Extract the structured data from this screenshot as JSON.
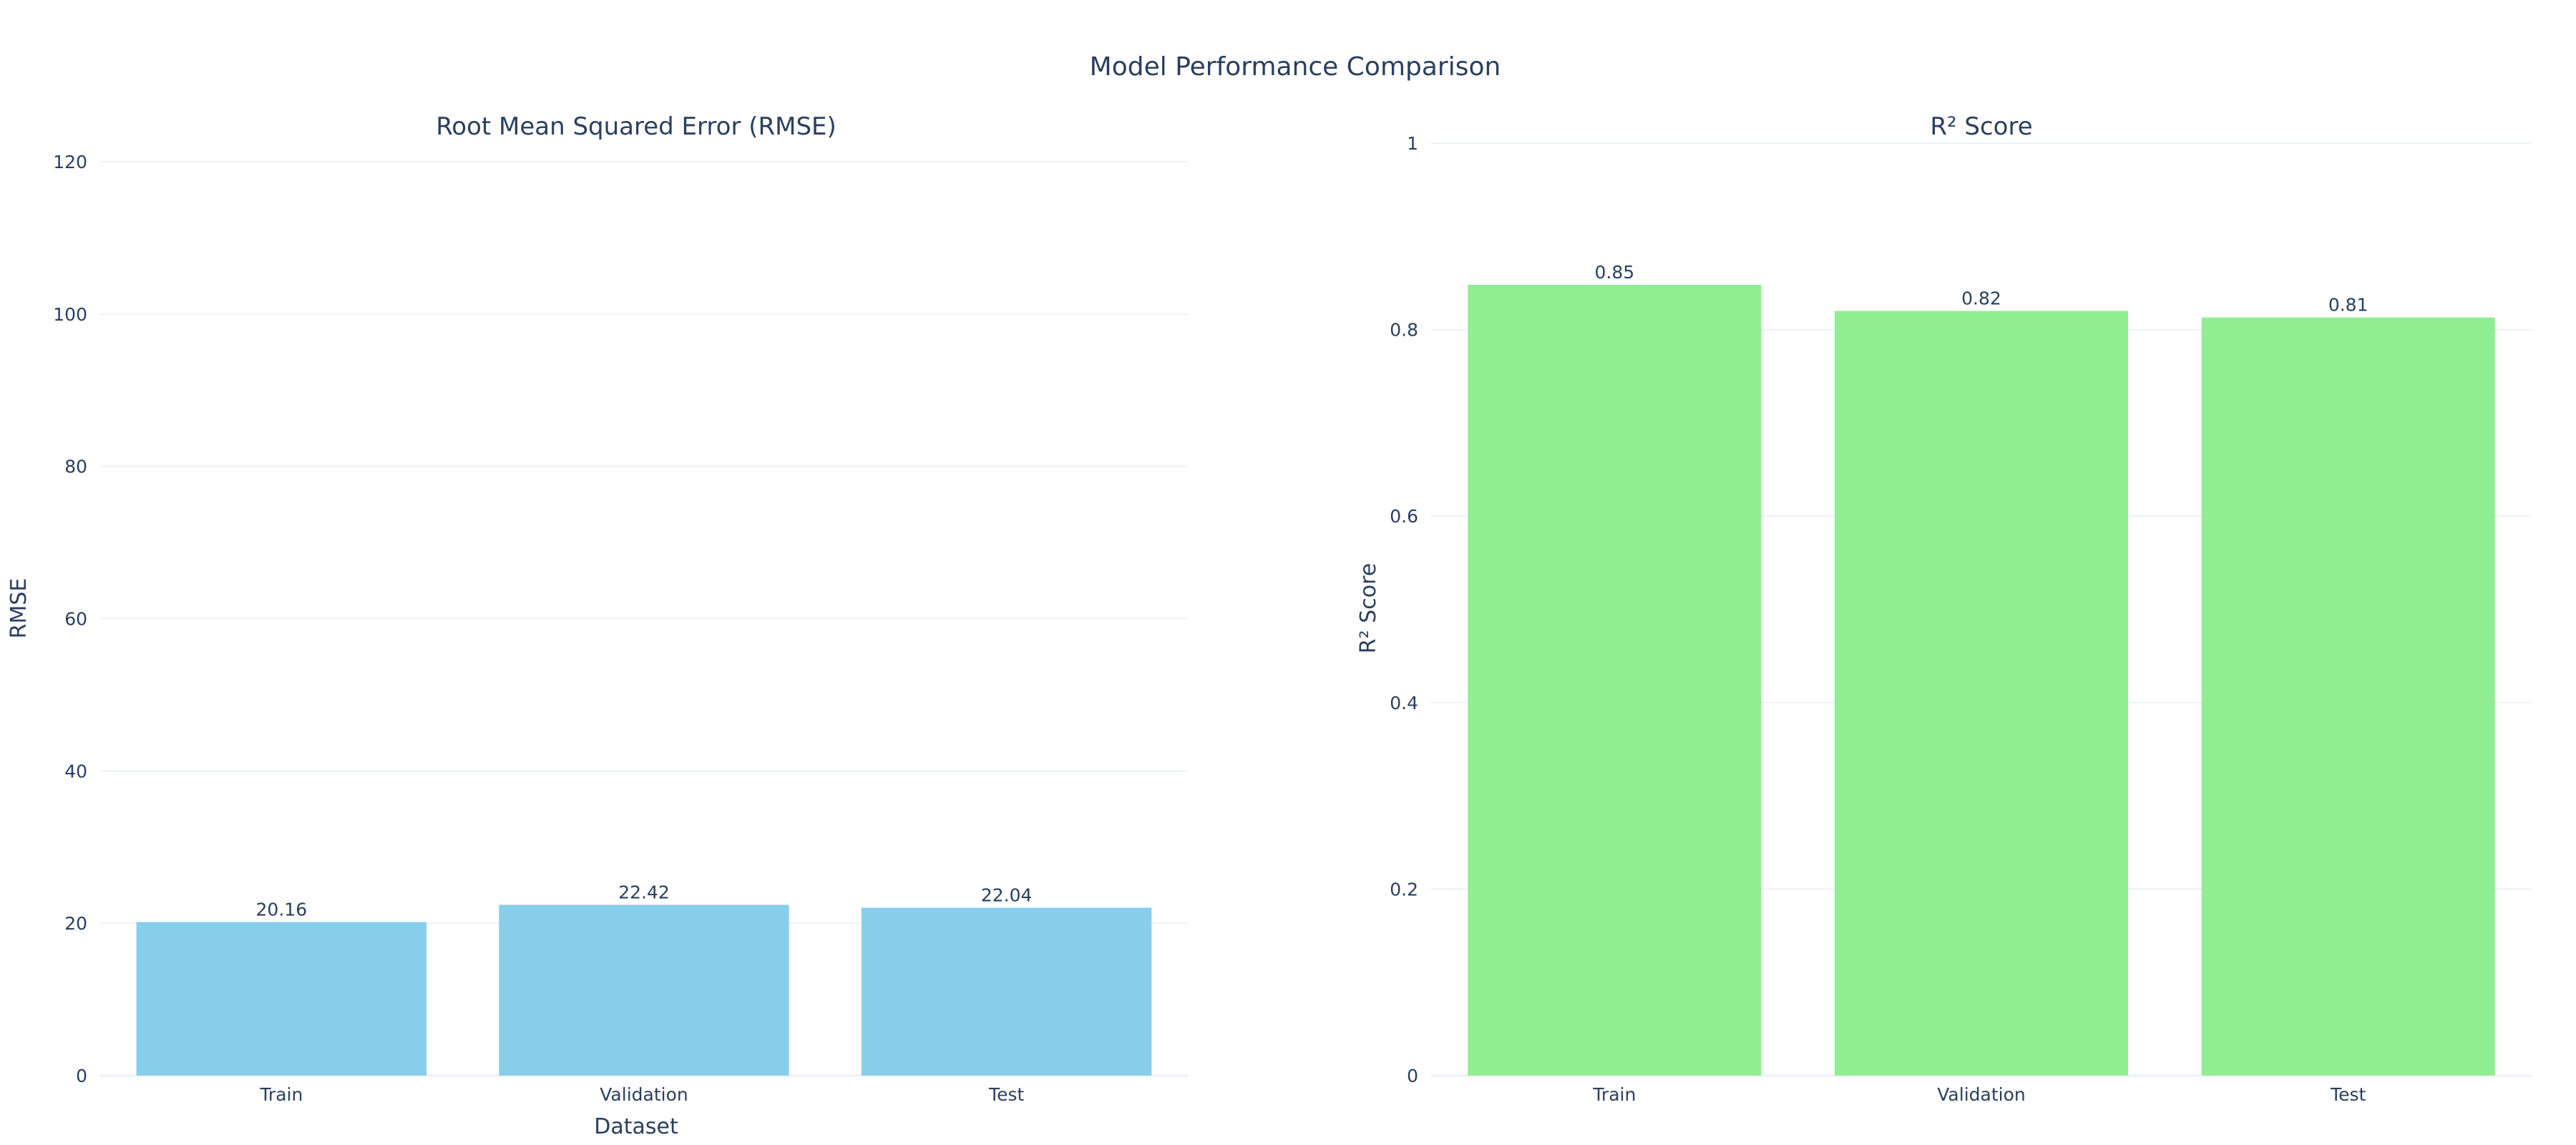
{
  "title": "Model Performance Comparison",
  "chart_data": [
    {
      "type": "bar",
      "title": "Root Mean Squared Error (RMSE)",
      "xlabel": "Dataset",
      "ylabel": "RMSE",
      "categories": [
        "Train",
        "Validation",
        "Test"
      ],
      "values": [
        20.16,
        22.42,
        22.04
      ],
      "value_labels": [
        "20.16",
        "22.42",
        "22.04"
      ],
      "ylim": [
        0,
        120
      ],
      "yticks": [
        0,
        20,
        40,
        60,
        80,
        100,
        120
      ],
      "color": "#87ceeb",
      "grid": true,
      "legend": "none"
    },
    {
      "type": "bar",
      "title": "R² Score",
      "xlabel": "",
      "ylabel": "R² Score",
      "categories": [
        "Train",
        "Validation",
        "Test"
      ],
      "values": [
        0.848,
        0.82,
        0.813
      ],
      "value_labels": [
        "0.85",
        "0.82",
        "0.81"
      ],
      "ylim": [
        0,
        1
      ],
      "yticks": [
        0,
        0.2,
        0.4,
        0.6,
        0.8,
        1
      ],
      "ytick_labels": [
        "0",
        "0.2",
        "0.4",
        "0.6",
        "0.8",
        "1"
      ],
      "color": "#90ee90",
      "grid": true,
      "legend": "none"
    }
  ]
}
